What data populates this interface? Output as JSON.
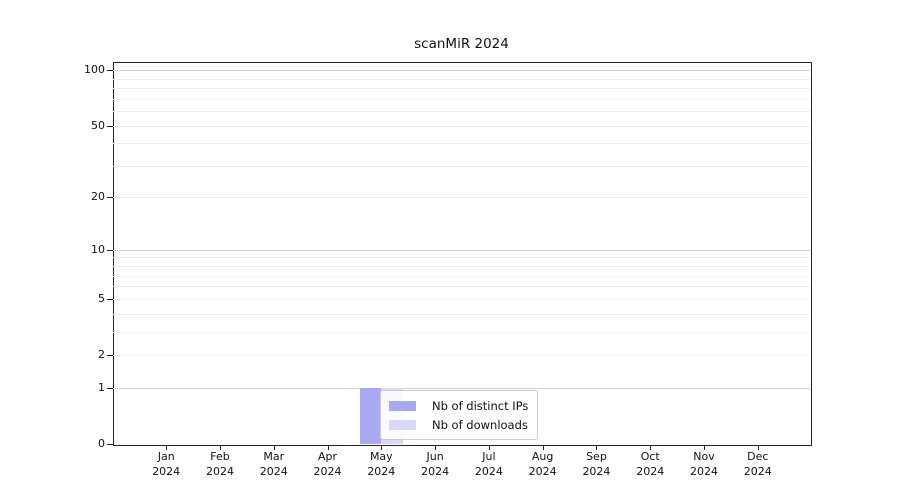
{
  "chart_data": {
    "type": "bar",
    "title": "scanMiR 2024",
    "categories": [
      {
        "month": "Jan",
        "year": "2024"
      },
      {
        "month": "Feb",
        "year": "2024"
      },
      {
        "month": "Mar",
        "year": "2024"
      },
      {
        "month": "Apr",
        "year": "2024"
      },
      {
        "month": "May",
        "year": "2024"
      },
      {
        "month": "Jun",
        "year": "2024"
      },
      {
        "month": "Jul",
        "year": "2024"
      },
      {
        "month": "Aug",
        "year": "2024"
      },
      {
        "month": "Sep",
        "year": "2024"
      },
      {
        "month": "Oct",
        "year": "2024"
      },
      {
        "month": "Nov",
        "year": "2024"
      },
      {
        "month": "Dec",
        "year": "2024"
      }
    ],
    "series": [
      {
        "name": "Nb of distinct IPs",
        "color": "#a9a9f2",
        "values": [
          0,
          0,
          0,
          0,
          1,
          0,
          0,
          0,
          0,
          0,
          0,
          0
        ]
      },
      {
        "name": "Nb of downloads",
        "color": "#d9d9f7",
        "values": [
          0,
          0,
          0,
          0,
          1,
          0,
          0,
          0,
          0,
          0,
          0,
          0
        ]
      }
    ],
    "y_ticks": [
      100,
      50,
      20,
      10,
      5,
      2,
      1,
      0
    ],
    "y_scale": "log1p",
    "ylim": [
      0,
      110
    ],
    "grid": true,
    "legend_position": "inside-bottom-center",
    "colors": {
      "major_grid": "#d4d4d4",
      "minor_grid": "#ededed",
      "axis": "#222222",
      "text": "#111111",
      "legend_border": "#cccccc"
    }
  }
}
